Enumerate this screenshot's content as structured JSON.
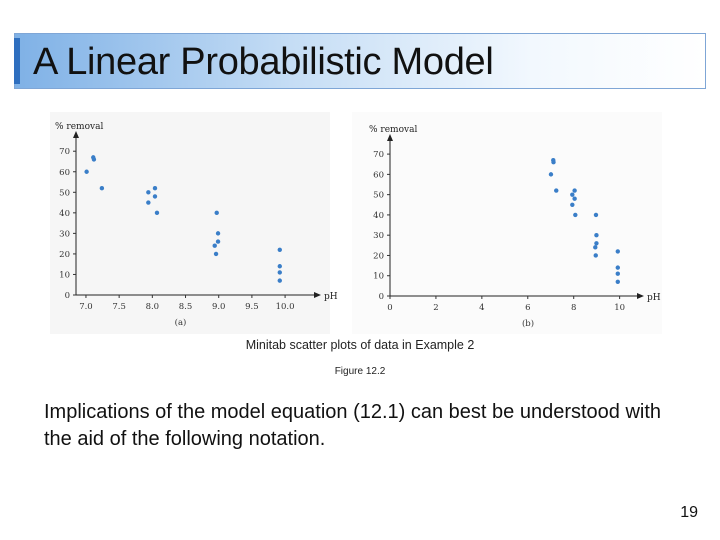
{
  "slide": {
    "title": "A Linear Probabilistic Model",
    "caption": "Minitab scatter plots of data in Example 2",
    "figure_label": "Figure 12.2",
    "body": "Implications of the model equation (12.1) can best be understood with the aid of the following notation.",
    "page_number": "19"
  },
  "colors": {
    "accent": "#2f6fbf",
    "points": "#3a7ec8",
    "title_gradient_start": "#7fb1e6"
  },
  "chart_data": [
    {
      "type": "scatter",
      "panel_label": "(a)",
      "title": "",
      "ylabel": "% removal",
      "xlabel": "pH",
      "xticks": [
        "7.0",
        "7.5",
        "8.0",
        "8.5",
        "9.0",
        "9.5",
        "10.0"
      ],
      "yticks": [
        "0",
        "10",
        "20",
        "30",
        "40",
        "50",
        "60",
        "70"
      ],
      "xlim": [
        6.85,
        10.3
      ],
      "ylim": [
        0,
        74
      ],
      "grid": false,
      "points": [
        [
          7.01,
          60
        ],
        [
          7.11,
          67
        ],
        [
          7.12,
          66
        ],
        [
          7.24,
          52
        ],
        [
          7.94,
          50
        ],
        [
          7.94,
          45
        ],
        [
          8.04,
          52
        ],
        [
          8.04,
          48
        ],
        [
          8.07,
          40
        ],
        [
          8.94,
          24
        ],
        [
          8.96,
          20
        ],
        [
          8.97,
          40
        ],
        [
          8.99,
          30
        ],
        [
          8.99,
          26
        ],
        [
          9.92,
          22
        ],
        [
          9.92,
          14
        ],
        [
          9.92,
          11
        ],
        [
          9.92,
          7
        ]
      ]
    },
    {
      "type": "scatter",
      "panel_label": "(b)",
      "title": "",
      "ylabel": "% removal",
      "xlabel": "pH",
      "xticks": [
        "0",
        "2",
        "4",
        "6",
        "8",
        "10"
      ],
      "yticks": [
        "0",
        "10",
        "20",
        "30",
        "40",
        "50",
        "60",
        "70"
      ],
      "xlim": [
        0,
        10.8
      ],
      "ylim": [
        0,
        74
      ],
      "grid": false,
      "points": [
        [
          7.01,
          60
        ],
        [
          7.11,
          67
        ],
        [
          7.12,
          66
        ],
        [
          7.24,
          52
        ],
        [
          7.94,
          50
        ],
        [
          7.94,
          45
        ],
        [
          8.04,
          52
        ],
        [
          8.04,
          48
        ],
        [
          8.07,
          40
        ],
        [
          8.94,
          24
        ],
        [
          8.96,
          20
        ],
        [
          8.97,
          40
        ],
        [
          8.99,
          30
        ],
        [
          8.99,
          26
        ],
        [
          9.92,
          22
        ],
        [
          9.92,
          14
        ],
        [
          9.92,
          11
        ],
        [
          9.92,
          7
        ]
      ]
    }
  ]
}
